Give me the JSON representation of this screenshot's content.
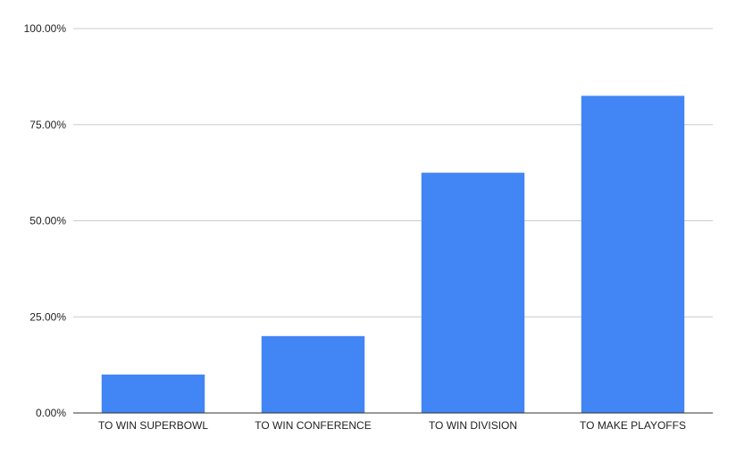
{
  "chart_data": {
    "type": "bar",
    "title": "",
    "xlabel": "",
    "ylabel": "",
    "categories": [
      "TO WIN SUPERBOWL",
      "TO WIN CONFERENCE",
      "TO WIN DIVISION",
      "TO MAKE PLAYOFFS"
    ],
    "values": [
      10.0,
      20.0,
      62.5,
      82.5
    ],
    "ylim": [
      0,
      100
    ],
    "yticks": [
      0,
      25,
      50,
      75,
      100
    ],
    "ytick_labels": [
      "0.00%",
      "25.00%",
      "50.00%",
      "75.00%",
      "100.00%"
    ],
    "grid": true,
    "legend": "none",
    "colors": {
      "bar": "#4285f4",
      "grid": "#cccccc",
      "axis": "#333333",
      "text": "#222222"
    }
  }
}
